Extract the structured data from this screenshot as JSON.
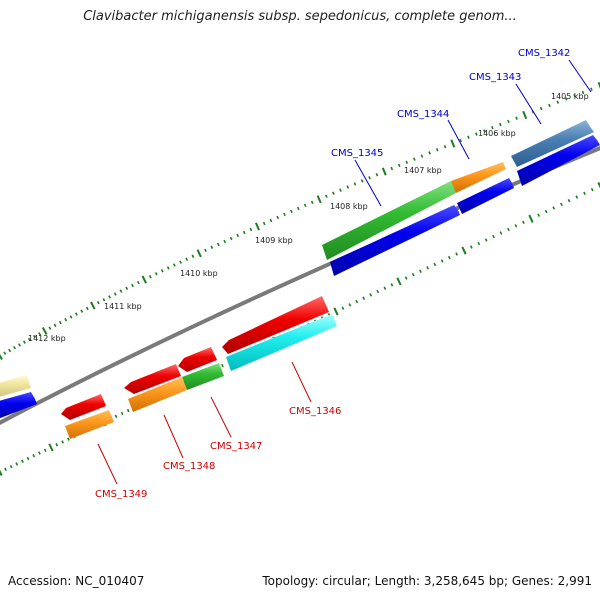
{
  "title": "Clavibacter michiganensis subsp. sepedonicus, complete genom...",
  "footer": {
    "accession": "Accession: NC_010407",
    "summary": "Topology: circular; Length: 3,258,645 bp; Genes: 2,991"
  },
  "ticks": [
    {
      "label": "1405 kbp"
    },
    {
      "label": "1406 kbp"
    },
    {
      "label": "1407 kbp"
    },
    {
      "label": "1408 kbp"
    },
    {
      "label": "1409 kbp"
    },
    {
      "label": "1410 kbp"
    },
    {
      "label": "1411 kbp"
    },
    {
      "label": "1412 kbp"
    }
  ],
  "genes": [
    {
      "name": "CMS_1342",
      "color": "#0000cc"
    },
    {
      "name": "CMS_1343",
      "color": "#0000cc"
    },
    {
      "name": "CMS_1344",
      "color": "#0000cc"
    },
    {
      "name": "CMS_1345",
      "color": "#0000cc"
    },
    {
      "name": "CMS_1346",
      "color": "#cc0000"
    },
    {
      "name": "CMS_1347",
      "color": "#cc0000"
    },
    {
      "name": "CMS_1348",
      "color": "#cc0000"
    },
    {
      "name": "CMS_1349",
      "color": "#cc0000"
    }
  ],
  "colors": {
    "backbone": "#808080",
    "tick_green": "#1e7d1e",
    "forward_label": "#0000cc",
    "reverse_label": "#cc0000"
  }
}
